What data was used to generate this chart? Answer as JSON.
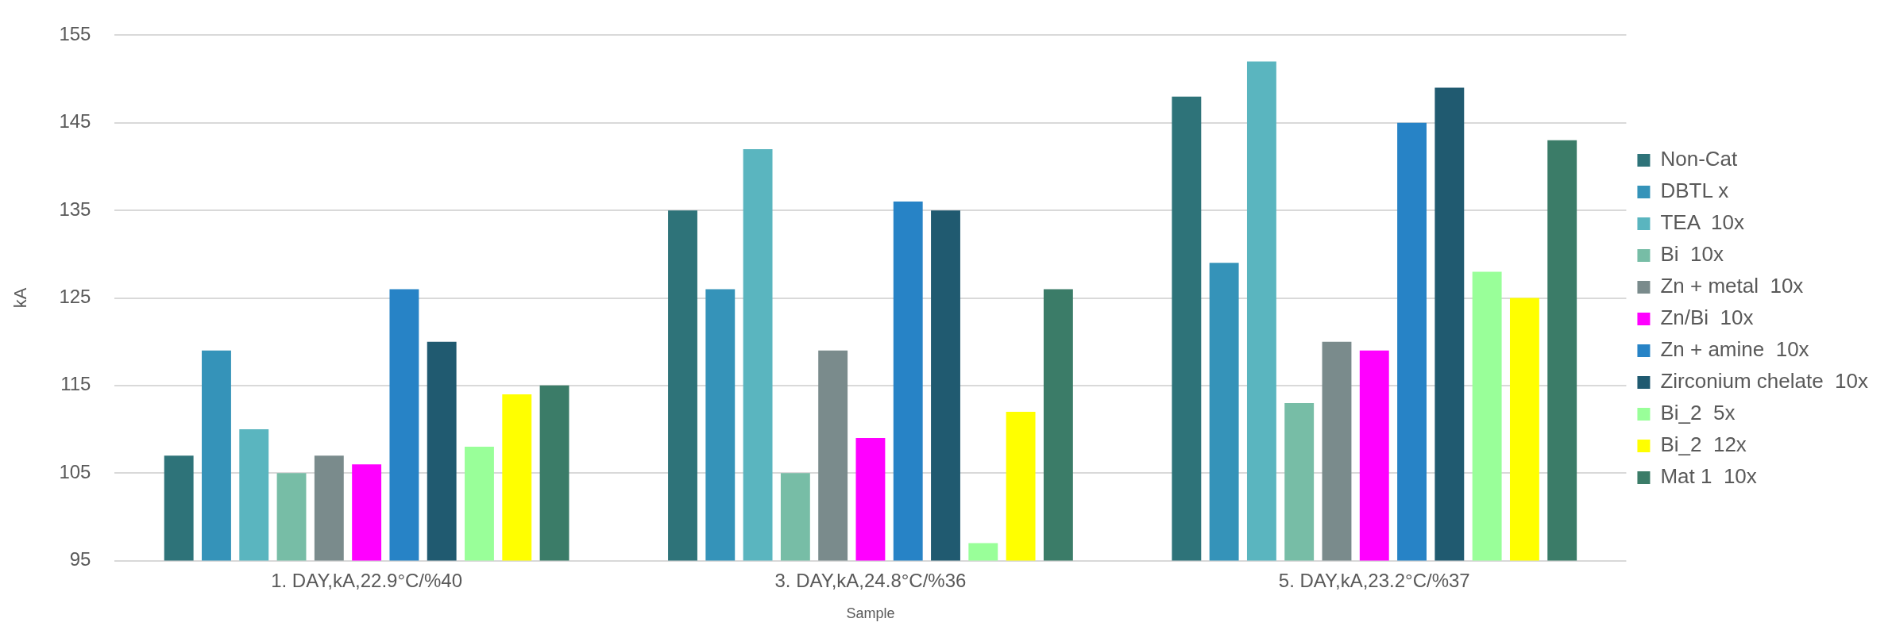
{
  "chart_data": {
    "type": "bar",
    "xlabel": "Sample",
    "ylabel": "kA",
    "categories": [
      "1. DAY,kA,22.9°C/%40",
      "3. DAY,kA,24.8°C/%36",
      "5. DAY,kA,23.2°C/%37"
    ],
    "series": [
      {
        "name": "Non-Cat",
        "color": "#2e7379",
        "values": [
          107,
          135,
          148
        ]
      },
      {
        "name": "DBTL x",
        "color": "#3593b9",
        "values": [
          119,
          126,
          129
        ]
      },
      {
        "name": "TEA  10x",
        "color": "#5ab5bf",
        "values": [
          110,
          142,
          152
        ]
      },
      {
        "name": "Bi  10x",
        "color": "#77bda6",
        "values": [
          105,
          105,
          113
        ]
      },
      {
        "name": "Zn + metal  10x",
        "color": "#7a8b8c",
        "values": [
          107,
          119,
          120
        ]
      },
      {
        "name": "Zn/Bi  10x",
        "color": "#ff00ff",
        "values": [
          106,
          109,
          119
        ]
      },
      {
        "name": "Zn + amine  10x",
        "color": "#2783c6",
        "values": [
          126,
          136,
          145
        ]
      },
      {
        "name": "Zirconium chelate  10x",
        "color": "#205a70",
        "values": [
          120,
          135,
          149
        ]
      },
      {
        "name": "Bi_2  5x",
        "color": "#99ff99",
        "values": [
          108,
          97,
          128
        ]
      },
      {
        "name": "Bi_2  12x",
        "color": "#ffff00",
        "values": [
          114,
          112,
          125
        ]
      },
      {
        "name": "Mat 1  10x",
        "color": "#3b7c68",
        "values": [
          115,
          126,
          143
        ]
      }
    ],
    "ylim": [
      95,
      155
    ],
    "yticks": [
      95,
      105,
      115,
      125,
      135,
      145,
      155
    ],
    "grid": "y",
    "legend": "right"
  }
}
